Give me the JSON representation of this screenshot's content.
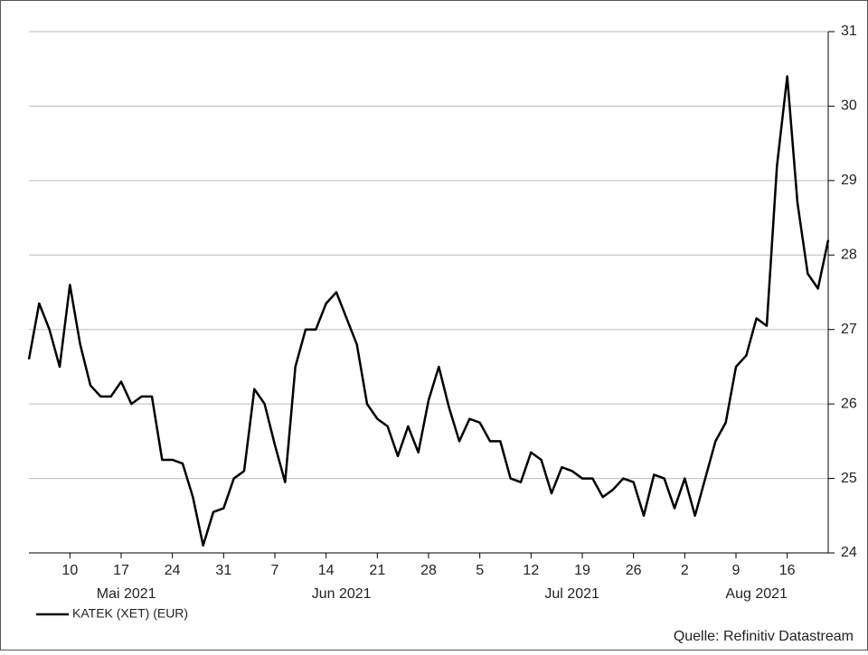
{
  "chart_data": {
    "type": "line",
    "x": [
      "2021-05-04",
      "2021-05-05",
      "2021-05-06",
      "2021-05-07",
      "2021-05-10",
      "2021-05-11",
      "2021-05-12",
      "2021-05-13",
      "2021-05-14",
      "2021-05-17",
      "2021-05-18",
      "2021-05-19",
      "2021-05-20",
      "2021-05-21",
      "2021-05-24",
      "2021-05-25",
      "2021-05-26",
      "2021-05-27",
      "2021-05-28",
      "2021-05-31",
      "2021-06-01",
      "2021-06-02",
      "2021-06-03",
      "2021-06-04",
      "2021-06-07",
      "2021-06-08",
      "2021-06-09",
      "2021-06-10",
      "2021-06-11",
      "2021-06-14",
      "2021-06-15",
      "2021-06-16",
      "2021-06-17",
      "2021-06-18",
      "2021-06-21",
      "2021-06-22",
      "2021-06-23",
      "2021-06-24",
      "2021-06-25",
      "2021-06-28",
      "2021-06-29",
      "2021-06-30",
      "2021-07-01",
      "2021-07-02",
      "2021-07-05",
      "2021-07-06",
      "2021-07-07",
      "2021-07-08",
      "2021-07-09",
      "2021-07-12",
      "2021-07-13",
      "2021-07-14",
      "2021-07-15",
      "2021-07-16",
      "2021-07-19",
      "2021-07-20",
      "2021-07-21",
      "2021-07-22",
      "2021-07-23",
      "2021-07-26",
      "2021-07-27",
      "2021-07-28",
      "2021-07-29",
      "2021-07-30",
      "2021-08-02",
      "2021-08-03",
      "2021-08-04",
      "2021-08-05",
      "2021-08-06",
      "2021-08-09",
      "2021-08-10",
      "2021-08-11",
      "2021-08-12",
      "2021-08-13",
      "2021-08-16",
      "2021-08-17",
      "2021-08-18",
      "2021-08-19",
      "2021-08-20"
    ],
    "series": [
      {
        "name": "KATEK (XET) (EUR)",
        "color": "#000000",
        "values": [
          26.6,
          27.35,
          27.0,
          26.5,
          27.6,
          26.8,
          26.25,
          26.1,
          26.1,
          26.3,
          26.0,
          26.1,
          26.1,
          25.25,
          25.25,
          25.2,
          24.75,
          24.1,
          24.55,
          24.6,
          25.0,
          25.1,
          26.2,
          26.0,
          25.45,
          24.95,
          26.5,
          27.0,
          27.0,
          27.35,
          27.5,
          27.15,
          26.8,
          26.0,
          25.8,
          25.7,
          25.3,
          25.7,
          25.35,
          26.05,
          26.5,
          25.95,
          25.5,
          25.8,
          25.75,
          25.5,
          25.5,
          25.0,
          24.95,
          25.35,
          25.25,
          24.8,
          25.15,
          25.1,
          25.0,
          25.0,
          24.75,
          24.85,
          25.0,
          24.95,
          24.5,
          25.05,
          25.0,
          24.6,
          25.0,
          24.5,
          25.0,
          25.5,
          25.75,
          26.5,
          26.65,
          27.15,
          27.05,
          29.2,
          30.4,
          28.7,
          27.75,
          27.55,
          28.2
        ]
      }
    ],
    "xlim": [
      "2021-05-04",
      "2021-08-20"
    ],
    "xticks": [
      {
        "value": "2021-05-10",
        "label": "10"
      },
      {
        "value": "2021-05-17",
        "label": "17"
      },
      {
        "value": "2021-05-24",
        "label": "24"
      },
      {
        "value": "2021-05-31",
        "label": "31"
      },
      {
        "value": "2021-06-07",
        "label": "7"
      },
      {
        "value": "2021-06-14",
        "label": "14"
      },
      {
        "value": "2021-06-21",
        "label": "21"
      },
      {
        "value": "2021-06-28",
        "label": "28"
      },
      {
        "value": "2021-07-05",
        "label": "5"
      },
      {
        "value": "2021-07-12",
        "label": "12"
      },
      {
        "value": "2021-07-19",
        "label": "19"
      },
      {
        "value": "2021-07-26",
        "label": "26"
      },
      {
        "value": "2021-08-02",
        "label": "2"
      },
      {
        "value": "2021-08-09",
        "label": "9"
      },
      {
        "value": "2021-08-16",
        "label": "16"
      }
    ],
    "months": [
      {
        "value": "2021-05",
        "label": "Mai 2021"
      },
      {
        "value": "2021-06",
        "label": "Jun 2021"
      },
      {
        "value": "2021-07",
        "label": "Jul 2021"
      },
      {
        "value": "2021-08",
        "label": "Aug 2021"
      }
    ],
    "ylim": [
      24,
      31
    ],
    "yticks": [
      24,
      25,
      26,
      27,
      28,
      29,
      30,
      31
    ],
    "y_axis_side": "right",
    "grid": true,
    "legend": "bottom-left",
    "source": "Quelle: Refinitiv Datastream"
  }
}
